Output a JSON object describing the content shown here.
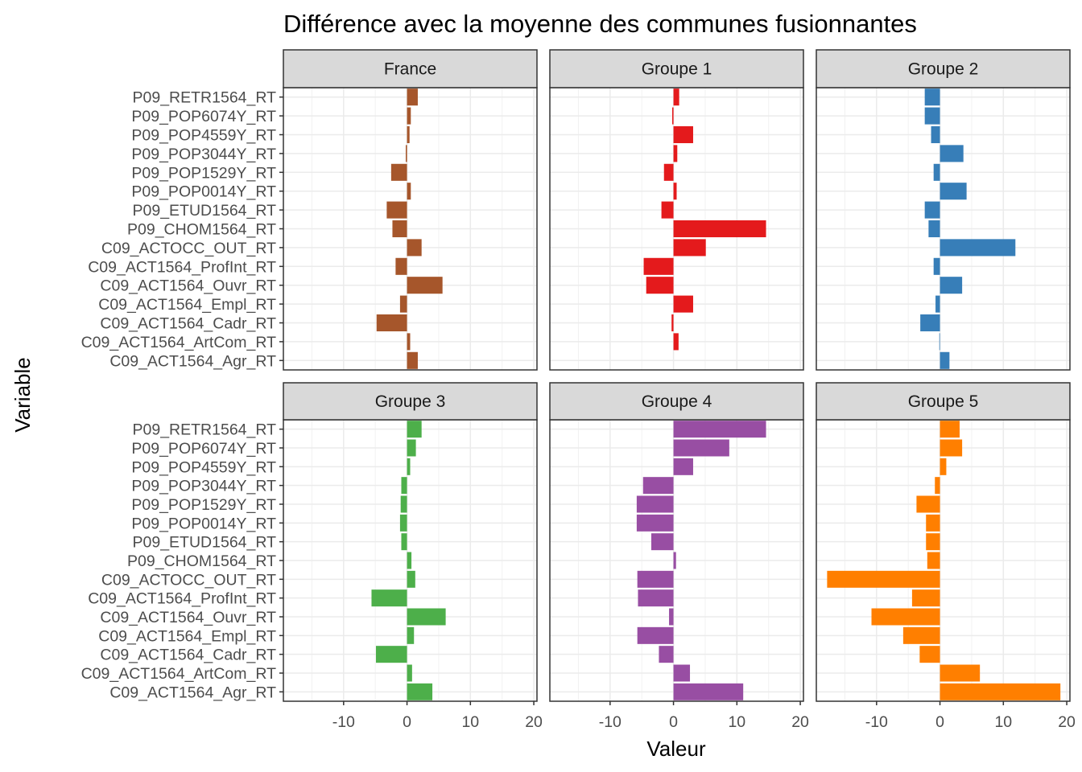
{
  "chart_data": {
    "type": "bar",
    "orientation": "horizontal",
    "title": "Différence avec la moyenne des communes fusionnantes",
    "xlabel": "Valeur",
    "ylabel": "Variable",
    "xlim": [
      -19.5,
      20.5
    ],
    "xticks": [
      -10,
      0,
      10,
      20
    ],
    "grid": true,
    "categories": [
      "P09_RETR1564_RT",
      "P09_POP6074Y_RT",
      "P09_POP4559Y_RT",
      "P09_POP3044Y_RT",
      "P09_POP1529Y_RT",
      "P09_POP0014Y_RT",
      "P09_ETUD1564_RT",
      "P09_CHOM1564_RT",
      "C09_ACTOCC_OUT_RT",
      "C09_ACT1564_ProfInt_RT",
      "C09_ACT1564_Ouvr_RT",
      "C09_ACT1564_Empl_RT",
      "C09_ACT1564_Cadr_RT",
      "C09_ACT1564_ArtCom_RT",
      "C09_ACT1564_Agr_RT"
    ],
    "series": [
      {
        "name": "France",
        "color": "#a6562b",
        "values": [
          1.7,
          0.6,
          0.4,
          -0.2,
          -2.5,
          0.6,
          -3.2,
          -2.3,
          2.3,
          -1.8,
          5.6,
          -1.1,
          -4.8,
          0.5,
          1.7
        ]
      },
      {
        "name": "Groupe 1",
        "color": "#e41a1c",
        "values": [
          0.9,
          -0.2,
          3.1,
          0.6,
          -1.5,
          0.5,
          -1.9,
          14.6,
          5.1,
          -4.7,
          -4.3,
          3.1,
          -0.3,
          0.8,
          0
        ]
      },
      {
        "name": "Groupe 2",
        "color": "#377eb8",
        "values": [
          -2.4,
          -2.4,
          -1.4,
          3.7,
          -1.0,
          4.2,
          -2.4,
          -1.8,
          11.9,
          -1.0,
          3.5,
          -0.7,
          -3.1,
          -0.1,
          1.5
        ]
      },
      {
        "name": "Groupe 3",
        "color": "#4daf4a",
        "values": [
          2.3,
          1.4,
          0.5,
          -0.9,
          -1.0,
          -1.1,
          -0.9,
          0.7,
          1.3,
          -5.6,
          6.1,
          1.1,
          -4.9,
          0.8,
          4.0
        ]
      },
      {
        "name": "Groupe 4",
        "color": "#984ea3",
        "values": [
          14.6,
          8.8,
          3.1,
          -4.8,
          -5.8,
          -5.8,
          -3.5,
          0.4,
          -5.7,
          -5.6,
          -0.7,
          -5.7,
          -2.3,
          2.6,
          11.0
        ]
      },
      {
        "name": "Groupe 5",
        "color": "#ff7f00",
        "values": [
          3.1,
          3.5,
          1.0,
          -0.8,
          -3.7,
          -2.2,
          -2.2,
          -2.0,
          -17.8,
          -4.4,
          -10.8,
          -5.8,
          -3.2,
          6.3,
          19.0
        ]
      }
    ]
  }
}
